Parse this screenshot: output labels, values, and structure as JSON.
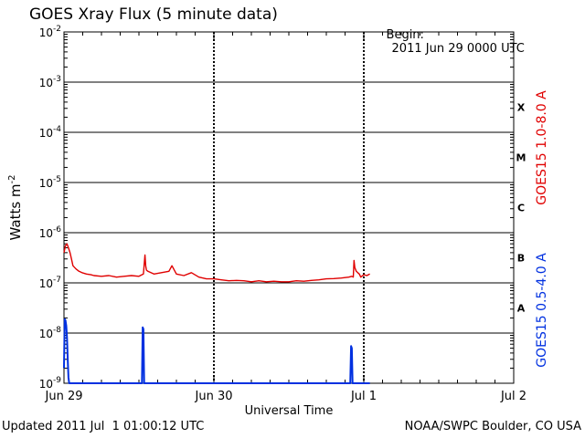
{
  "header": {
    "title": "GOES Xray Flux (5 minute data)",
    "begin_label": "Begin:",
    "begin_value": "2011 Jun 29 0000 UTC"
  },
  "footer": {
    "updated": "Updated 2011 Jul  1 01:00:12 UTC",
    "credit": "NOAA/SWPC Boulder, CO USA"
  },
  "chart_data": {
    "type": "line",
    "title": "GOES Xray Flux (5 minute data)",
    "xlabel": "Universal Time",
    "ylabel": "Watts m",
    "ylabel_sup": "-2",
    "yscale": "log",
    "ylim": [
      1e-09,
      0.01
    ],
    "xlim_days": [
      0,
      3
    ],
    "grid": true,
    "xticks": [
      {
        "day": 0,
        "label": "Jun 29"
      },
      {
        "day": 1,
        "label": "Jun 30"
      },
      {
        "day": 2,
        "label": "Jul 1"
      },
      {
        "day": 3,
        "label": "Jul 2"
      }
    ],
    "yticks": [
      {
        "exp": -9,
        "base": "10",
        "sup": "-9"
      },
      {
        "exp": -8,
        "base": "10",
        "sup": "-8"
      },
      {
        "exp": -7,
        "base": "10",
        "sup": "-7"
      },
      {
        "exp": -6,
        "base": "10",
        "sup": "-6"
      },
      {
        "exp": -5,
        "base": "10",
        "sup": "-5"
      },
      {
        "exp": -4,
        "base": "10",
        "sup": "-4"
      },
      {
        "exp": -3,
        "base": "10",
        "sup": "-3"
      },
      {
        "exp": -2,
        "base": "10",
        "sup": "-2"
      }
    ],
    "flare_classes": [
      {
        "label": "A",
        "exp": -7.5
      },
      {
        "label": "B",
        "exp": -6.5
      },
      {
        "label": "C",
        "exp": -5.5
      },
      {
        "label": "M",
        "exp": -4.5
      },
      {
        "label": "X",
        "exp": -3.5
      }
    ],
    "series": [
      {
        "name": "GOES15 1.0-8.0 A",
        "color": "#e00000",
        "x": [
          0.0,
          0.01,
          0.02,
          0.03,
          0.04,
          0.05,
          0.06,
          0.08,
          0.1,
          0.12,
          0.15,
          0.18,
          0.2,
          0.25,
          0.3,
          0.35,
          0.4,
          0.45,
          0.5,
          0.53,
          0.54,
          0.545,
          0.55,
          0.56,
          0.58,
          0.6,
          0.65,
          0.7,
          0.72,
          0.75,
          0.8,
          0.85,
          0.9,
          0.95,
          1.0,
          1.05,
          1.1,
          1.15,
          1.2,
          1.25,
          1.3,
          1.35,
          1.4,
          1.45,
          1.5,
          1.55,
          1.6,
          1.65,
          1.7,
          1.75,
          1.8,
          1.85,
          1.9,
          1.92,
          1.93,
          1.935,
          1.94,
          1.95,
          1.96,
          1.97,
          1.98,
          2.0,
          2.02,
          2.04
        ],
        "y": [
          4e-07,
          5.5e-07,
          6e-07,
          5e-07,
          4e-07,
          3e-07,
          2.2e-07,
          1.9e-07,
          1.7e-07,
          1.6e-07,
          1.5e-07,
          1.45e-07,
          1.4e-07,
          1.35e-07,
          1.4e-07,
          1.3e-07,
          1.35e-07,
          1.4e-07,
          1.35e-07,
          1.5e-07,
          3.6e-07,
          2.2e-07,
          1.8e-07,
          1.7e-07,
          1.6e-07,
          1.5e-07,
          1.6e-07,
          1.7e-07,
          2.2e-07,
          1.5e-07,
          1.4e-07,
          1.6e-07,
          1.3e-07,
          1.2e-07,
          1.2e-07,
          1.15e-07,
          1.1e-07,
          1.12e-07,
          1.1e-07,
          1.05e-07,
          1.1e-07,
          1.05e-07,
          1.08e-07,
          1.05e-07,
          1.05e-07,
          1.1e-07,
          1.08e-07,
          1.12e-07,
          1.15e-07,
          1.2e-07,
          1.22e-07,
          1.25e-07,
          1.3e-07,
          1.35e-07,
          1.3e-07,
          2.8e-07,
          2e-07,
          1.7e-07,
          1.6e-07,
          1.5e-07,
          1.3e-07,
          1.45e-07,
          1.4e-07,
          1.5e-07
        ]
      },
      {
        "name": "GOES15 0.5-4.0 A",
        "color": "#0030e0",
        "x": [
          0.0,
          0.005,
          0.01,
          0.015,
          0.02,
          0.025,
          0.03,
          0.035,
          0.04,
          0.045,
          0.05,
          0.52,
          0.525,
          0.53,
          0.535,
          0.54,
          1.0,
          1.5,
          1.9,
          1.91,
          1.915,
          1.92,
          1.925,
          1.93,
          2.04
        ],
        "y": [
          2e-09,
          1.9e-08,
          1.8e-08,
          1.4e-08,
          8e-09,
          3e-09,
          1.3e-09,
          1e-09,
          1e-09,
          1e-09,
          1e-09,
          1e-09,
          1.3e-08,
          1.2e-08,
          1e-09,
          1e-09,
          1e-09,
          1e-09,
          1e-09,
          1e-09,
          5.5e-09,
          5e-09,
          1e-09,
          1e-09,
          1e-09
        ]
      }
    ]
  }
}
